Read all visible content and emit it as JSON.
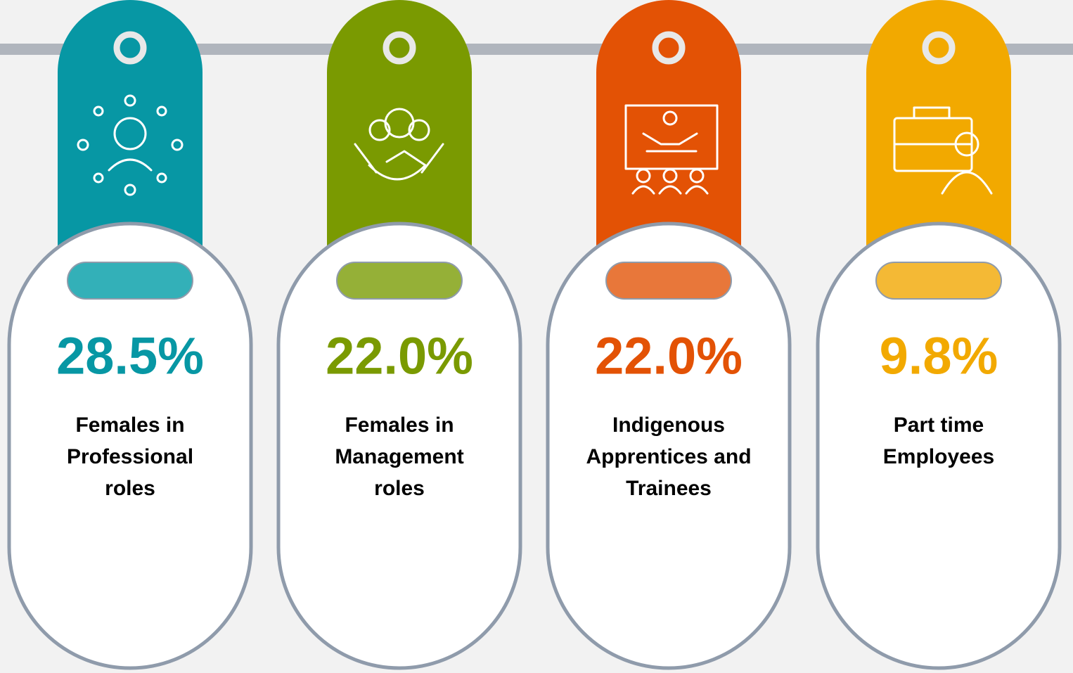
{
  "cards": [
    {
      "value": "28.5%",
      "label_lines": [
        "Females in",
        "Professional",
        "roles"
      ],
      "color": "#0797a4",
      "pill_color": "#33b0b8"
    },
    {
      "value": "22.0%",
      "label_lines": [
        "Females in",
        "Management",
        "roles"
      ],
      "color": "#7a9a01",
      "pill_color": "#95b037"
    },
    {
      "value": "22.0%",
      "label_lines": [
        "Indigenous",
        "Apprentices and",
        "Trainees"
      ],
      "color": "#e35205",
      "pill_color": "#e8773a"
    },
    {
      "value": "9.8%",
      "label_lines": [
        "Part time",
        "Employees"
      ],
      "color": "#f2a900",
      "pill_color": "#f4b935"
    }
  ]
}
